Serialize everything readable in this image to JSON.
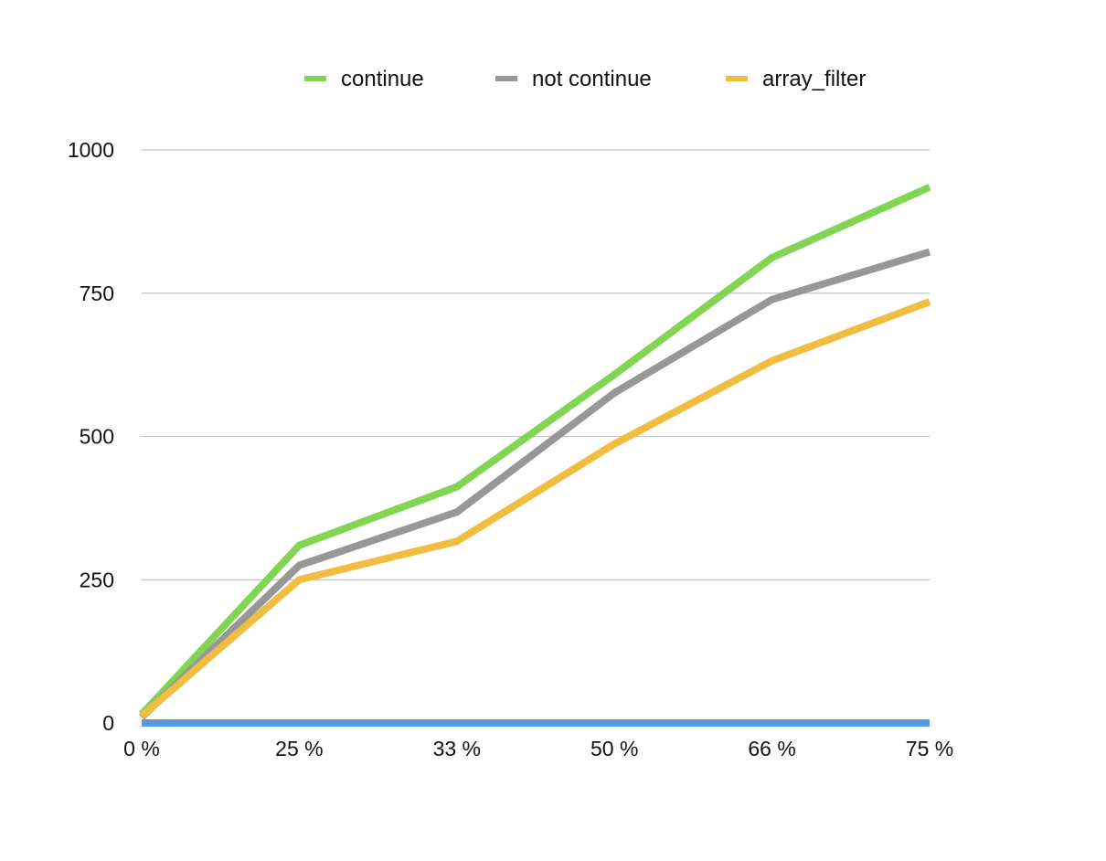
{
  "chart_data": {
    "type": "line",
    "categories": [
      "0 %",
      "25 %",
      "33 %",
      "50 %",
      "66 %",
      "75 %"
    ],
    "y_ticks": [
      0,
      250,
      500,
      750,
      1000
    ],
    "ylim": [
      0,
      1000
    ],
    "grid": true,
    "legend_position": "top",
    "series": [
      {
        "name": "continue",
        "color": "#81d552",
        "values": [
          15,
          310,
          412,
          608,
          812,
          935
        ]
      },
      {
        "name": "not continue",
        "color": "#979797",
        "values": [
          10,
          275,
          368,
          576,
          739,
          822
        ]
      },
      {
        "name": "array_filter",
        "color": "#f0bd41",
        "values": [
          12,
          250,
          317,
          487,
          632,
          735
        ]
      },
      {
        "name": "",
        "color": "#4d9cf7",
        "values": [
          0,
          0,
          0,
          0,
          0,
          0
        ]
      }
    ]
  }
}
